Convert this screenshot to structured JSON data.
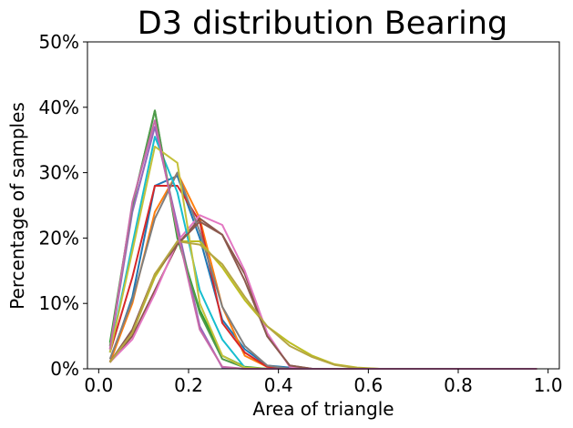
{
  "chart_data": {
    "type": "line",
    "title": "D3 distribution Bearing",
    "xlabel": "Area of triangle",
    "ylabel": "Percentage of samples",
    "xlim": [
      -0.025,
      1.025
    ],
    "ylim": [
      0,
      50
    ],
    "x_ticks": [
      0.0,
      0.2,
      0.4,
      0.6,
      0.8,
      1.0
    ],
    "x_tick_labels": [
      "0.0",
      "0.2",
      "0.4",
      "0.6",
      "0.8",
      "1.0"
    ],
    "y_ticks": [
      0,
      10,
      20,
      30,
      40,
      50
    ],
    "y_tick_labels": [
      "0%",
      "10%",
      "20%",
      "30%",
      "40%",
      "50%"
    ],
    "grid": false,
    "legend": false,
    "x": [
      0.025,
      0.075,
      0.125,
      0.175,
      0.225,
      0.275,
      0.325,
      0.375,
      0.425,
      0.475,
      0.525,
      0.575,
      0.625,
      0.675,
      0.725,
      0.775,
      0.825,
      0.875,
      0.925,
      0.975
    ],
    "series": [
      {
        "color": "#1f77b4",
        "values": [
          1.0,
          11.0,
          28.0,
          29.5,
          20.0,
          7.5,
          3.0,
          0.5,
          0.2,
          0,
          0,
          0,
          0,
          0,
          0,
          0,
          0,
          0,
          0,
          0
        ]
      },
      {
        "color": "#ff7f0e",
        "values": [
          1.0,
          10.0,
          24.0,
          30.0,
          23.0,
          9.5,
          2.0,
          0.3,
          0,
          0,
          0,
          0,
          0,
          0,
          0,
          0,
          0,
          0,
          0,
          0
        ]
      },
      {
        "color": "#2ca02c",
        "values": [
          4.0,
          25.0,
          39.5,
          20.0,
          9.0,
          2.0,
          0.3,
          0,
          0,
          0,
          0,
          0,
          0,
          0,
          0,
          0,
          0,
          0,
          0,
          0
        ]
      },
      {
        "color": "#d62728",
        "values": [
          2.5,
          14.0,
          28.0,
          28.0,
          22.5,
          7.0,
          2.5,
          0.3,
          0,
          0,
          0,
          0,
          0,
          0,
          0,
          0,
          0,
          0,
          0,
          0
        ]
      },
      {
        "color": "#9467bd",
        "values": [
          3.0,
          24.0,
          37.0,
          22.0,
          6.5,
          0.2,
          0,
          0,
          0,
          0,
          0,
          0,
          0,
          0,
          0,
          0,
          0,
          0,
          0,
          0
        ]
      },
      {
        "color": "#8c564b",
        "values": [
          1.0,
          5.0,
          12.0,
          19.0,
          23.0,
          20.5,
          14.5,
          5.0,
          0.5,
          0,
          0,
          0,
          0,
          0,
          0,
          0,
          0,
          0,
          0,
          0
        ]
      },
      {
        "color": "#e377c2",
        "values": [
          1.0,
          4.5,
          11.5,
          19.5,
          23.5,
          22.0,
          15.0,
          5.5,
          0.3,
          0,
          0,
          0,
          0,
          0,
          0,
          0,
          0,
          0,
          0,
          0
        ]
      },
      {
        "color": "#7f7f7f",
        "values": [
          1.5,
          10.5,
          23.0,
          30.0,
          21.0,
          9.5,
          3.5,
          0.5,
          0,
          0,
          0,
          0,
          0,
          0,
          0,
          0,
          0,
          0,
          0,
          0
        ]
      },
      {
        "color": "#bcbd22",
        "values": [
          1.0,
          5.5,
          14.0,
          19.5,
          19.5,
          15.5,
          10.5,
          6.5,
          4.0,
          2.0,
          0.7,
          0.2,
          0,
          0,
          0,
          0,
          0,
          0,
          0,
          0
        ]
      },
      {
        "color": "#17becf",
        "values": [
          2.5,
          19.0,
          35.5,
          27.0,
          12.0,
          4.5,
          0.2,
          0,
          0,
          0,
          0,
          0,
          0,
          0,
          0,
          0,
          0,
          0,
          0,
          0
        ]
      },
      {
        "color": "#4e9a4a",
        "values": [
          3.5,
          25.0,
          39.5,
          20.5,
          8.5,
          1.5,
          0.2,
          0,
          0,
          0,
          0,
          0,
          0,
          0,
          0,
          0,
          0,
          0,
          0,
          0
        ]
      },
      {
        "color": "#c4c13a",
        "values": [
          2.5,
          18.0,
          34.0,
          31.5,
          10.0,
          2.0,
          0.2,
          0,
          0,
          0,
          0,
          0,
          0,
          0,
          0,
          0,
          0,
          0,
          0,
          0
        ]
      },
      {
        "color": "#8b5a4e",
        "values": [
          1.0,
          6.0,
          14.5,
          19.0,
          22.5,
          20.5,
          13.5,
          5.0,
          0.5,
          0,
          0,
          0,
          0,
          0,
          0,
          0,
          0,
          0,
          0,
          0
        ]
      },
      {
        "color": "#b5a642",
        "values": [
          1.0,
          5.5,
          14.5,
          19.5,
          19.0,
          16.0,
          11.0,
          6.5,
          3.5,
          1.8,
          0.6,
          0.1,
          0,
          0,
          0,
          0,
          0,
          0,
          0,
          0
        ]
      },
      {
        "color": "#c76aa9",
        "values": [
          3.0,
          25.5,
          38.0,
          21.0,
          6.0,
          0.3,
          0,
          0,
          0,
          0,
          0,
          0,
          0,
          0,
          0,
          0,
          0,
          0,
          0,
          0
        ]
      }
    ]
  }
}
